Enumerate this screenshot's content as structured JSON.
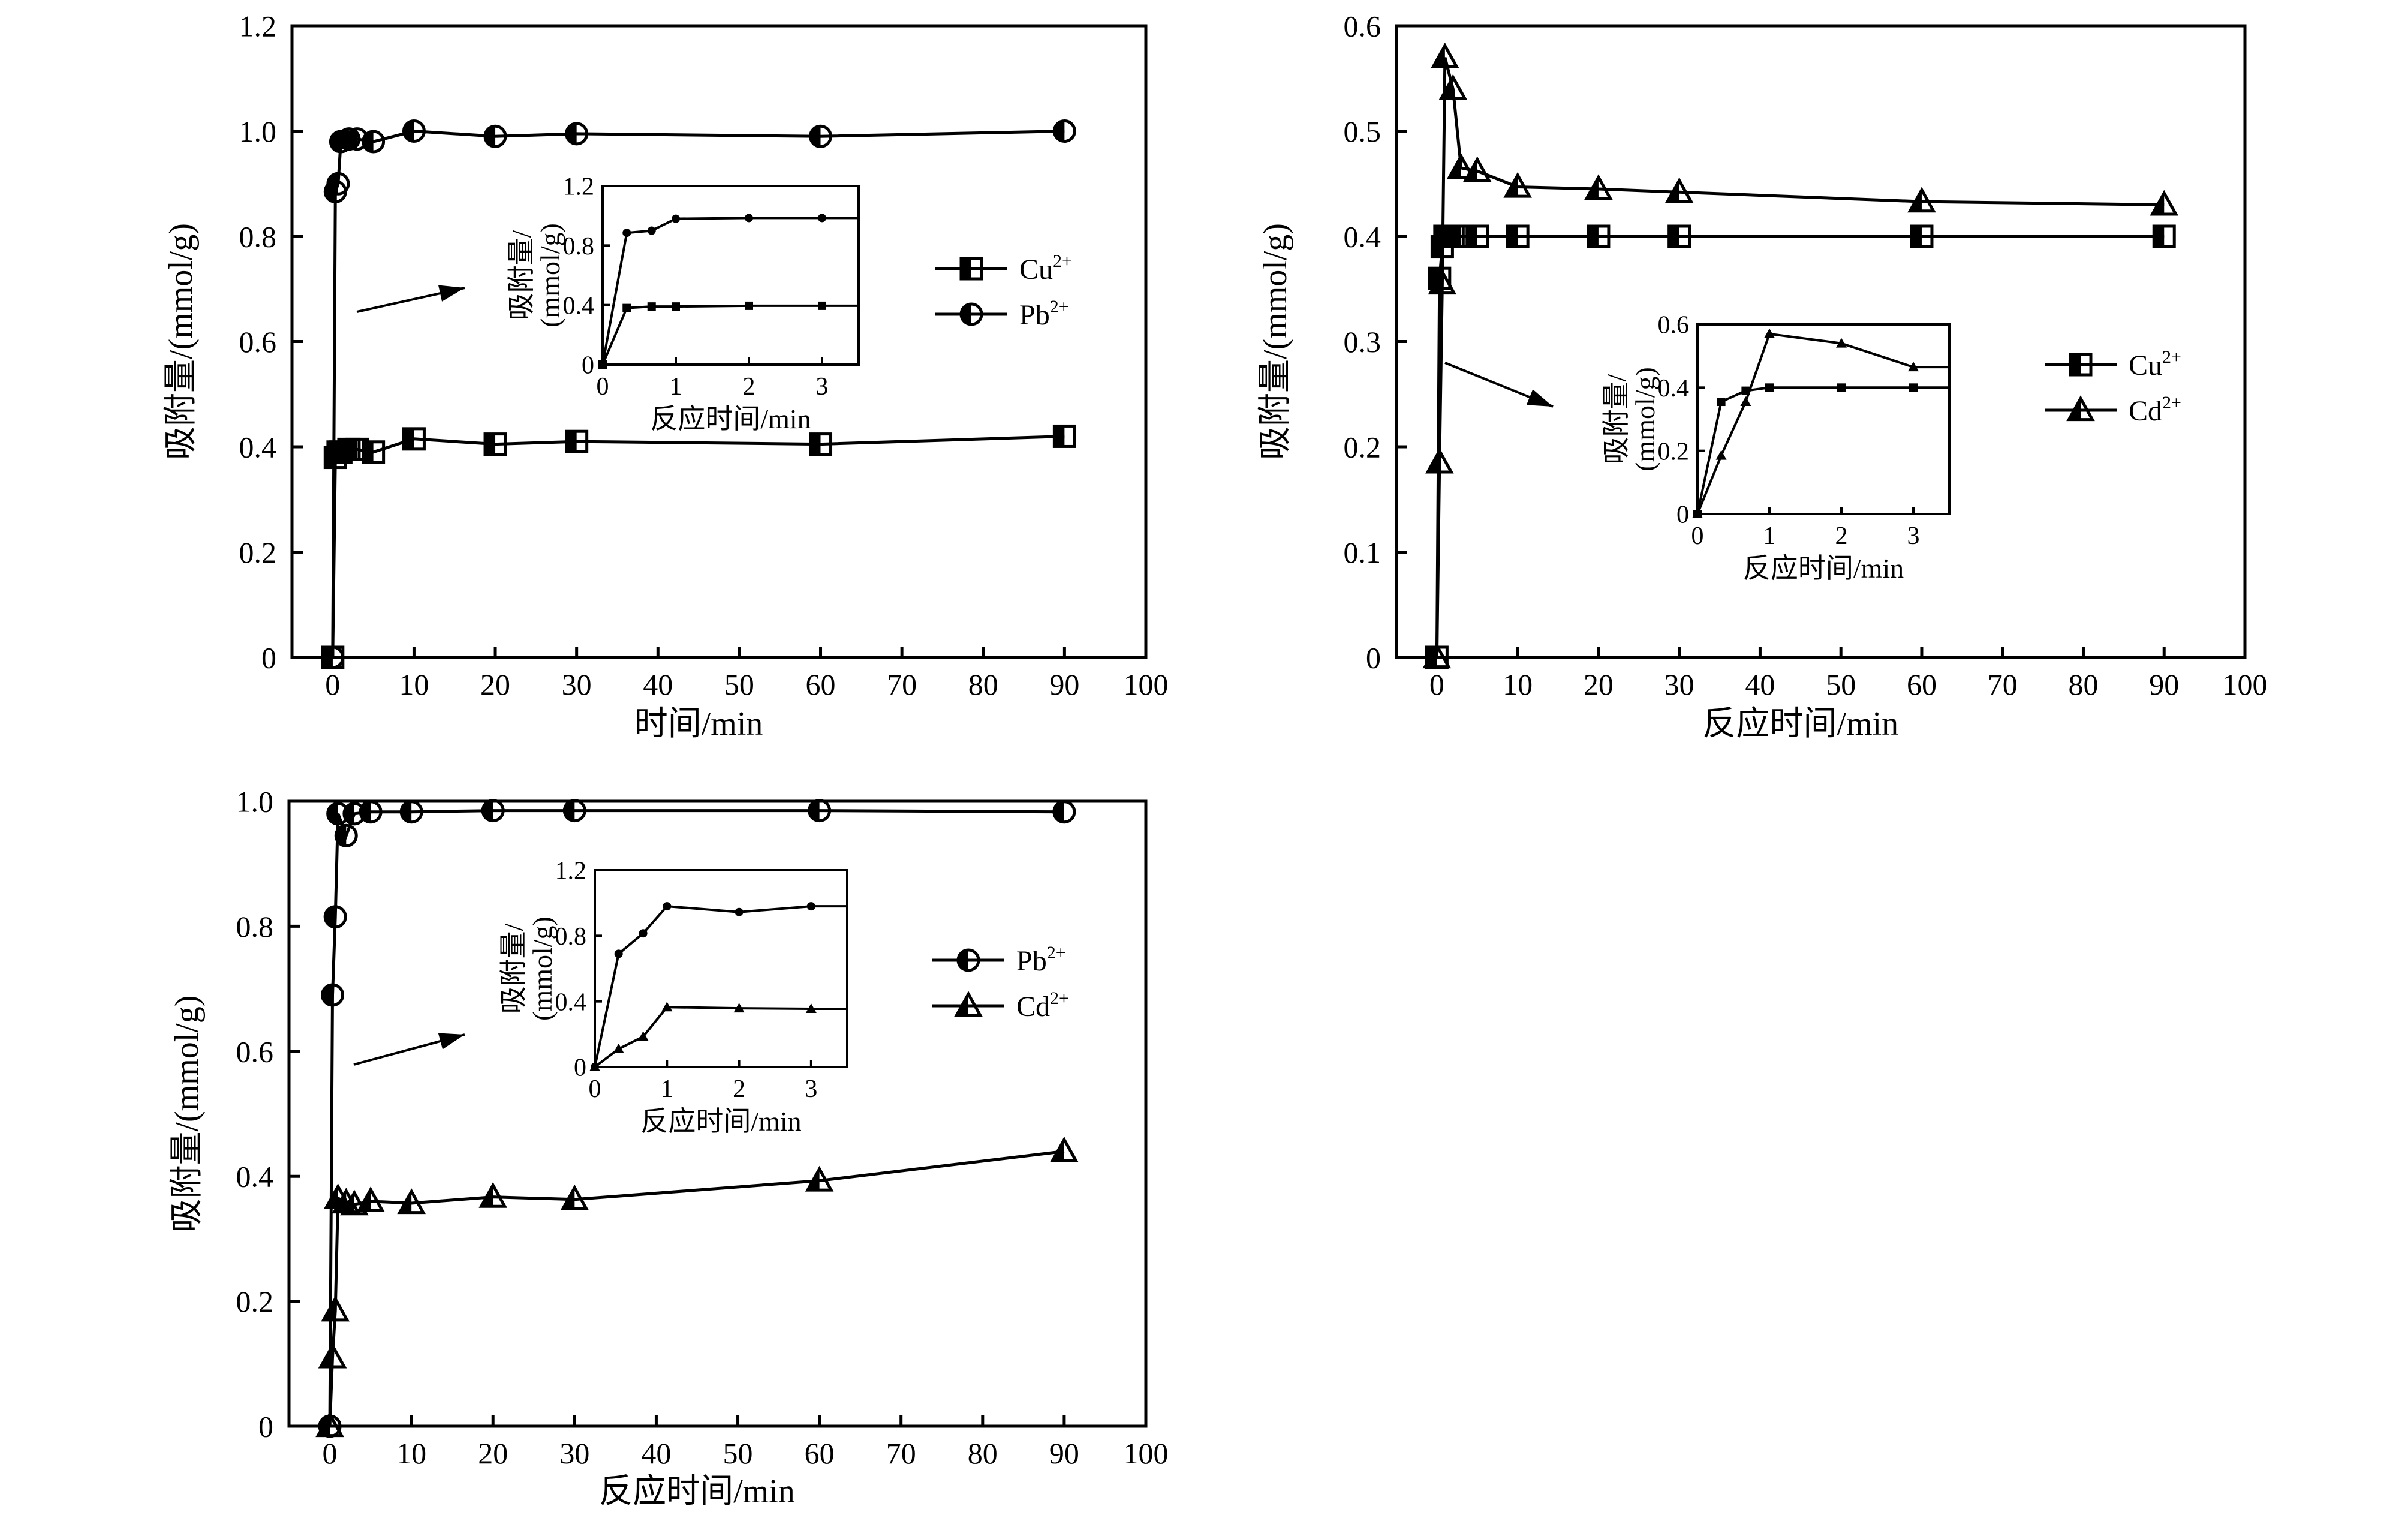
{
  "charts": [
    {
      "type": "line",
      "xlabel": "时间/min",
      "ylabel": "吸附量/(mmol/g)",
      "xlim": [
        -5,
        100
      ],
      "ylim": [
        0,
        1.2
      ],
      "xticks": [
        0,
        10,
        20,
        30,
        40,
        50,
        60,
        70,
        80,
        90,
        100
      ],
      "yticks": [
        0,
        0.2,
        0.4,
        0.6,
        0.8,
        1.0,
        1.2
      ],
      "ytick_labels": [
        "0",
        "0.2",
        "0.4",
        "0.6",
        "0.8",
        "1.0",
        "1.2"
      ],
      "series": [
        {
          "name": "Cu",
          "charge": "2+",
          "marker": "square",
          "x": [
            0,
            0.33,
            0.67,
            1,
            2,
            3,
            5,
            10,
            20,
            30,
            60,
            90
          ],
          "y": [
            0,
            0.38,
            0.39,
            0.39,
            0.395,
            0.395,
            0.39,
            0.415,
            0.405,
            0.41,
            0.405,
            0.42
          ]
        },
        {
          "name": "Pb",
          "charge": "2+",
          "marker": "circle",
          "x": [
            0,
            0.33,
            0.67,
            1,
            2,
            3,
            5,
            10,
            20,
            30,
            60,
            90
          ],
          "y": [
            0,
            0.885,
            0.9,
            0.98,
            0.985,
            0.985,
            0.98,
            1.0,
            0.99,
            0.995,
            0.99,
            1.0
          ]
        }
      ],
      "inset": {
        "xlabel": "反应时间/min",
        "ylabel_line1": "吸附量/",
        "ylabel_line2": "(mmol/g)",
        "xlim": [
          0,
          3.5
        ],
        "ylim": [
          0,
          1.2
        ],
        "xticks": [
          0,
          1,
          2,
          3
        ],
        "yticks": [
          0,
          0.4,
          0.8,
          1.2
        ],
        "ytick_labels": [
          "0",
          "0.4",
          "0.8",
          "1.2"
        ],
        "series": [
          {
            "marker": "square",
            "x": [
              0,
              0.33,
              0.67,
              1,
              2,
              3,
              3.5
            ],
            "y": [
              0,
              0.38,
              0.39,
              0.39,
              0.395,
              0.395,
              0.395
            ]
          },
          {
            "marker": "circle",
            "x": [
              0,
              0.33,
              0.67,
              1,
              2,
              3,
              3.5
            ],
            "y": [
              0,
              0.885,
              0.9,
              0.98,
              0.985,
              0.985,
              0.985
            ]
          }
        ]
      }
    },
    {
      "type": "line",
      "xlabel": "反应时间/min",
      "ylabel": "吸附量/(mmol/g)",
      "xlim": [
        -5,
        100
      ],
      "ylim": [
        0,
        0.6
      ],
      "xticks": [
        0,
        10,
        20,
        30,
        40,
        50,
        60,
        70,
        80,
        90,
        100
      ],
      "yticks": [
        0,
        0.1,
        0.2,
        0.3,
        0.4,
        0.5,
        0.6
      ],
      "ytick_labels": [
        "0",
        "0.1",
        "0.2",
        "0.3",
        "0.4",
        "0.5",
        "0.6"
      ],
      "series": [
        {
          "name": "Cu",
          "charge": "2+",
          "marker": "square",
          "x": [
            0,
            0.33,
            0.67,
            1,
            2,
            3,
            5,
            10,
            20,
            30,
            60,
            90
          ],
          "y": [
            0,
            0.36,
            0.39,
            0.4,
            0.4,
            0.4,
            0.4,
            0.4,
            0.4,
            0.4,
            0.4,
            0.4
          ]
        },
        {
          "name": "Cd",
          "charge": "2+",
          "marker": "triangle",
          "x": [
            0,
            0.33,
            0.67,
            1,
            2,
            3,
            5,
            10,
            20,
            30,
            60,
            90
          ],
          "y": [
            0,
            0.185,
            0.355,
            0.57,
            0.54,
            0.465,
            0.462,
            0.447,
            0.445,
            0.442,
            0.433,
            0.43
          ]
        }
      ],
      "inset": {
        "xlabel": "反应时间/min",
        "ylabel_line1": "吸附量/",
        "ylabel_line2": "(mmol/g)",
        "xlim": [
          0,
          3.5
        ],
        "ylim": [
          0,
          0.6
        ],
        "xticks": [
          0,
          1,
          2,
          3
        ],
        "yticks": [
          0,
          0.2,
          0.4,
          0.6
        ],
        "ytick_labels": [
          "0",
          "0.2",
          "0.4",
          "0.6"
        ],
        "series": [
          {
            "marker": "square",
            "x": [
              0,
              0.33,
              0.67,
              1,
              2,
              3,
              3.5
            ],
            "y": [
              0,
              0.355,
              0.39,
              0.4,
              0.4,
              0.4,
              0.4
            ]
          },
          {
            "marker": "triangle",
            "x": [
              0,
              0.33,
              0.67,
              1,
              2,
              3,
              3.5
            ],
            "y": [
              0,
              0.185,
              0.355,
              0.57,
              0.54,
              0.465,
              0.465
            ]
          }
        ]
      }
    },
    {
      "type": "line",
      "xlabel": "反应时间/min",
      "ylabel": "吸附量/(mmol/g)",
      "xlim": [
        -5,
        100
      ],
      "ylim": [
        0,
        1.0
      ],
      "xticks": [
        0,
        10,
        20,
        30,
        40,
        50,
        60,
        70,
        80,
        90,
        100
      ],
      "yticks": [
        0,
        0.2,
        0.4,
        0.6,
        0.8,
        1.0
      ],
      "ytick_labels": [
        "0",
        "0.2",
        "0.4",
        "0.6",
        "0.8",
        "1.0"
      ],
      "series": [
        {
          "name": "Pb",
          "charge": "2+",
          "marker": "circle",
          "x": [
            0,
            0.33,
            0.67,
            1,
            2,
            3,
            5,
            10,
            20,
            30,
            60,
            90
          ],
          "y": [
            0,
            0.69,
            0.815,
            0.98,
            0.945,
            0.98,
            0.983,
            0.983,
            0.985,
            0.985,
            0.985,
            0.983
          ]
        },
        {
          "name": "Cd",
          "charge": "2+",
          "marker": "triangle",
          "x": [
            0,
            0.33,
            0.67,
            1,
            2,
            3,
            5,
            10,
            20,
            30,
            60,
            90
          ],
          "y": [
            0,
            0.11,
            0.185,
            0.365,
            0.358,
            0.355,
            0.36,
            0.357,
            0.367,
            0.363,
            0.393,
            0.44
          ]
        }
      ],
      "inset": {
        "xlabel": "反应时间/min",
        "ylabel_line1": "吸附量/",
        "ylabel_line2": "(mmol/g)",
        "xlim": [
          0,
          3.5
        ],
        "ylim": [
          0,
          1.2
        ],
        "xticks": [
          0,
          1,
          2,
          3
        ],
        "yticks": [
          0,
          0.4,
          0.8,
          1.2
        ],
        "ytick_labels": [
          "0",
          "0.4",
          "0.8",
          "1.2"
        ],
        "series": [
          {
            "marker": "circle",
            "x": [
              0,
              0.33,
              0.67,
              1,
              2,
              3,
              3.5
            ],
            "y": [
              0,
              0.69,
              0.815,
              0.98,
              0.945,
              0.98,
              0.98
            ]
          },
          {
            "marker": "triangle",
            "x": [
              0,
              0.33,
              0.67,
              1,
              2,
              3,
              3.5
            ],
            "y": [
              0,
              0.11,
              0.185,
              0.365,
              0.358,
              0.355,
              0.355
            ]
          }
        ]
      }
    }
  ],
  "chart_data": [
    {
      "type": "line",
      "xlabel": "时间/min",
      "ylabel": "吸附量/(mmol/g)",
      "xlim": [
        -5,
        100
      ],
      "ylim": [
        0,
        1.2
      ],
      "grid": false,
      "legend": "right",
      "series": [
        {
          "name": "Cu2+",
          "x": [
            0,
            0.33,
            0.67,
            1,
            2,
            3,
            5,
            10,
            20,
            30,
            60,
            90
          ],
          "y": [
            0,
            0.38,
            0.39,
            0.39,
            0.395,
            0.395,
            0.39,
            0.415,
            0.405,
            0.41,
            0.405,
            0.42
          ]
        },
        {
          "name": "Pb2+",
          "x": [
            0,
            0.33,
            0.67,
            1,
            2,
            3,
            5,
            10,
            20,
            30,
            60,
            90
          ],
          "y": [
            0,
            0.885,
            0.9,
            0.98,
            0.985,
            0.985,
            0.98,
            1.0,
            0.99,
            0.995,
            0.99,
            1.0
          ]
        }
      ]
    },
    {
      "type": "line",
      "xlabel": "反应时间/min",
      "ylabel": "吸附量/(mmol/g)",
      "xlim": [
        -5,
        100
      ],
      "ylim": [
        0,
        0.6
      ],
      "grid": false,
      "legend": "right",
      "series": [
        {
          "name": "Cu2+",
          "x": [
            0,
            0.33,
            0.67,
            1,
            2,
            3,
            5,
            10,
            20,
            30,
            60,
            90
          ],
          "y": [
            0,
            0.36,
            0.39,
            0.4,
            0.4,
            0.4,
            0.4,
            0.4,
            0.4,
            0.4,
            0.4,
            0.4
          ]
        },
        {
          "name": "Cd2+",
          "x": [
            0,
            0.33,
            0.67,
            1,
            2,
            3,
            5,
            10,
            20,
            30,
            60,
            90
          ],
          "y": [
            0,
            0.185,
            0.355,
            0.57,
            0.54,
            0.465,
            0.462,
            0.447,
            0.445,
            0.442,
            0.433,
            0.43
          ]
        }
      ]
    },
    {
      "type": "line",
      "xlabel": "反应时间/min",
      "ylabel": "吸附量/(mmol/g)",
      "xlim": [
        -5,
        100
      ],
      "ylim": [
        0,
        1.0
      ],
      "grid": false,
      "legend": "right",
      "series": [
        {
          "name": "Pb2+",
          "x": [
            0,
            0.33,
            0.67,
            1,
            2,
            3,
            5,
            10,
            20,
            30,
            60,
            90
          ],
          "y": [
            0,
            0.69,
            0.815,
            0.98,
            0.945,
            0.98,
            0.983,
            0.983,
            0.985,
            0.985,
            0.985,
            0.983
          ]
        },
        {
          "name": "Cd2+",
          "x": [
            0,
            0.33,
            0.67,
            1,
            2,
            3,
            5,
            10,
            20,
            30,
            60,
            90
          ],
          "y": [
            0,
            0.11,
            0.185,
            0.365,
            0.358,
            0.355,
            0.36,
            0.357,
            0.367,
            0.363,
            0.393,
            0.44
          ]
        }
      ]
    }
  ]
}
